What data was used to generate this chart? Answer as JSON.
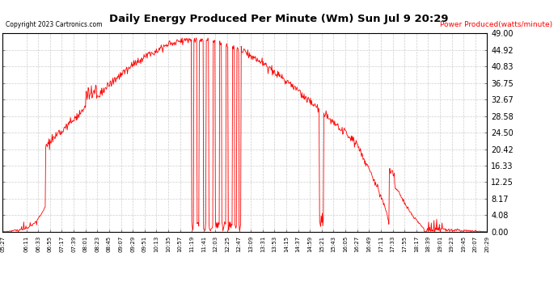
{
  "title": "Daily Energy Produced Per Minute (Wm) Sun Jul 9 20:29",
  "copyright": "Copyright 2023 Cartronics.com",
  "legend_label": "Power Produced(watts/minute)",
  "line_color": "red",
  "background_color": "#ffffff",
  "grid_color": "#c8c8c8",
  "ymin": 0.0,
  "ymax": 49.0,
  "yticks": [
    0.0,
    4.08,
    8.17,
    12.25,
    16.33,
    20.42,
    24.5,
    28.58,
    32.67,
    36.75,
    40.83,
    44.92,
    49.0
  ],
  "xtick_labels": [
    "05:27",
    "06:11",
    "06:33",
    "06:55",
    "07:17",
    "07:39",
    "08:01",
    "08:23",
    "08:45",
    "09:07",
    "09:29",
    "09:51",
    "10:13",
    "10:35",
    "10:57",
    "11:19",
    "11:41",
    "12:03",
    "12:25",
    "12:47",
    "13:09",
    "13:31",
    "13:53",
    "14:15",
    "14:37",
    "14:59",
    "15:21",
    "15:43",
    "16:05",
    "16:27",
    "16:49",
    "17:11",
    "17:33",
    "17:55",
    "18:17",
    "18:39",
    "19:01",
    "19:23",
    "19:45",
    "20:07",
    "20:29"
  ]
}
